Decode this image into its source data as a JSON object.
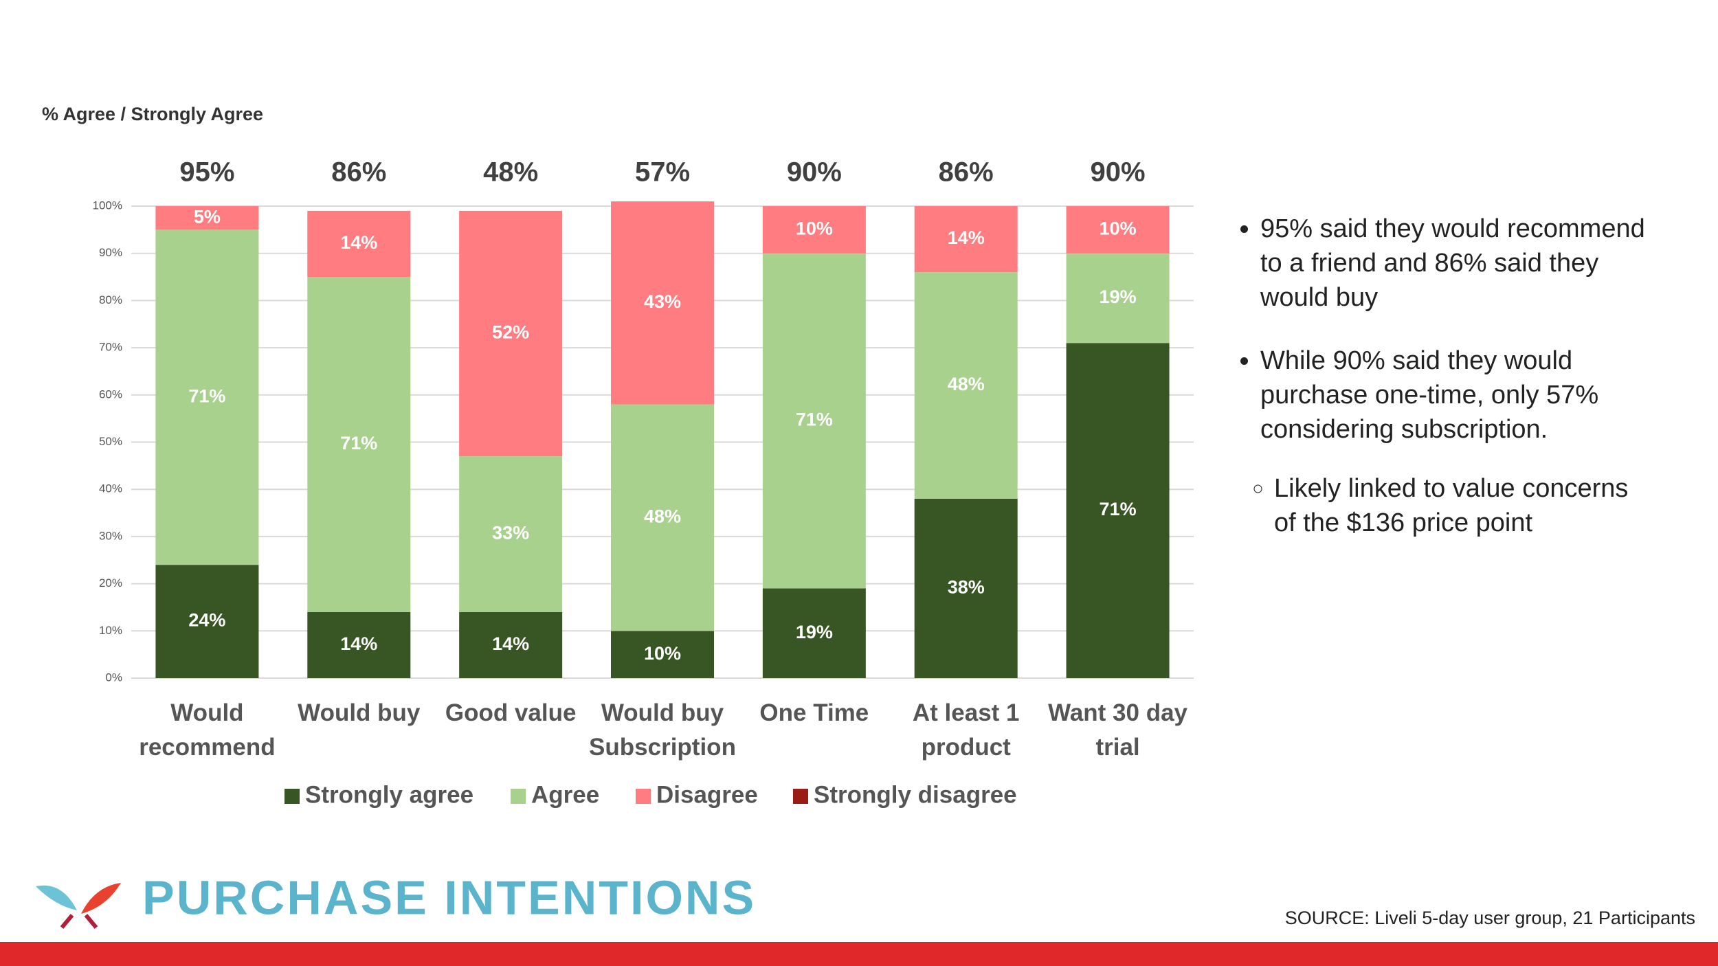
{
  "chart_data": {
    "type": "stacked_bar",
    "ylabel": "% Agree / Strongly Agree",
    "categories": [
      "Would\nrecommend",
      "Would buy",
      "Good value",
      "Would buy\nSubscription",
      "One Time",
      "At least 1\nproduct",
      "Want 30 day\ntrial"
    ],
    "totals": {
      "values": [
        95,
        86,
        48,
        57,
        90,
        86,
        90
      ],
      "value_labels": [
        "95%",
        "86%",
        "48%",
        "57%",
        "90%",
        "86%",
        "90%"
      ]
    },
    "series": [
      {
        "name": "Strongly agree",
        "color": "#375623",
        "values": [
          24,
          14,
          14,
          10,
          19,
          38,
          71
        ],
        "value_labels": [
          "24%",
          "14%",
          "14%",
          "10%",
          "19%",
          "38%",
          "71%"
        ]
      },
      {
        "name": "Agree",
        "color": "#a9d18e",
        "values": [
          71,
          71,
          33,
          48,
          71,
          48,
          19
        ],
        "value_labels": [
          "71%",
          "71%",
          "33%",
          "48%",
          "71%",
          "48%",
          "19%"
        ]
      },
      {
        "name": "Disagree",
        "color": "#ff7c80",
        "values": [
          5,
          14,
          52,
          43,
          10,
          14,
          10
        ],
        "value_labels": [
          "5%",
          "14%",
          "52%",
          "43%",
          "10%",
          "14%",
          "10%"
        ]
      },
      {
        "name": "Strongly disagree",
        "color": "#9b1c14",
        "values": [
          0,
          0,
          0,
          0,
          0,
          0,
          0
        ]
      }
    ],
    "ylim": [
      0,
      100
    ],
    "yticks": [
      {
        "value": 0,
        "label": "0%"
      },
      {
        "value": 10,
        "label": "10%"
      },
      {
        "value": 20,
        "label": "20%"
      },
      {
        "value": 30,
        "label": "30%"
      },
      {
        "value": 40,
        "label": "40%"
      },
      {
        "value": 50,
        "label": "50%"
      },
      {
        "value": 60,
        "label": "60%"
      },
      {
        "value": 70,
        "label": "70%"
      },
      {
        "value": 80,
        "label": "80%"
      },
      {
        "value": 90,
        "label": "90%"
      },
      {
        "value": 100,
        "label": "100%"
      }
    ],
    "grid": true,
    "legend": "bottom"
  },
  "notes": {
    "bullets": [
      "95% said they would recommend to a friend and 86% said they would buy",
      "While 90% said they would purchase one-time, only 57% considering subscription."
    ],
    "sub_bullets": [
      "Likely linked to value concerns of the $136 price point"
    ]
  },
  "footer": {
    "title": "PURCHASE INTENTIONS",
    "source": "SOURCE: Liveli 5-day user group, 21 Participants"
  }
}
